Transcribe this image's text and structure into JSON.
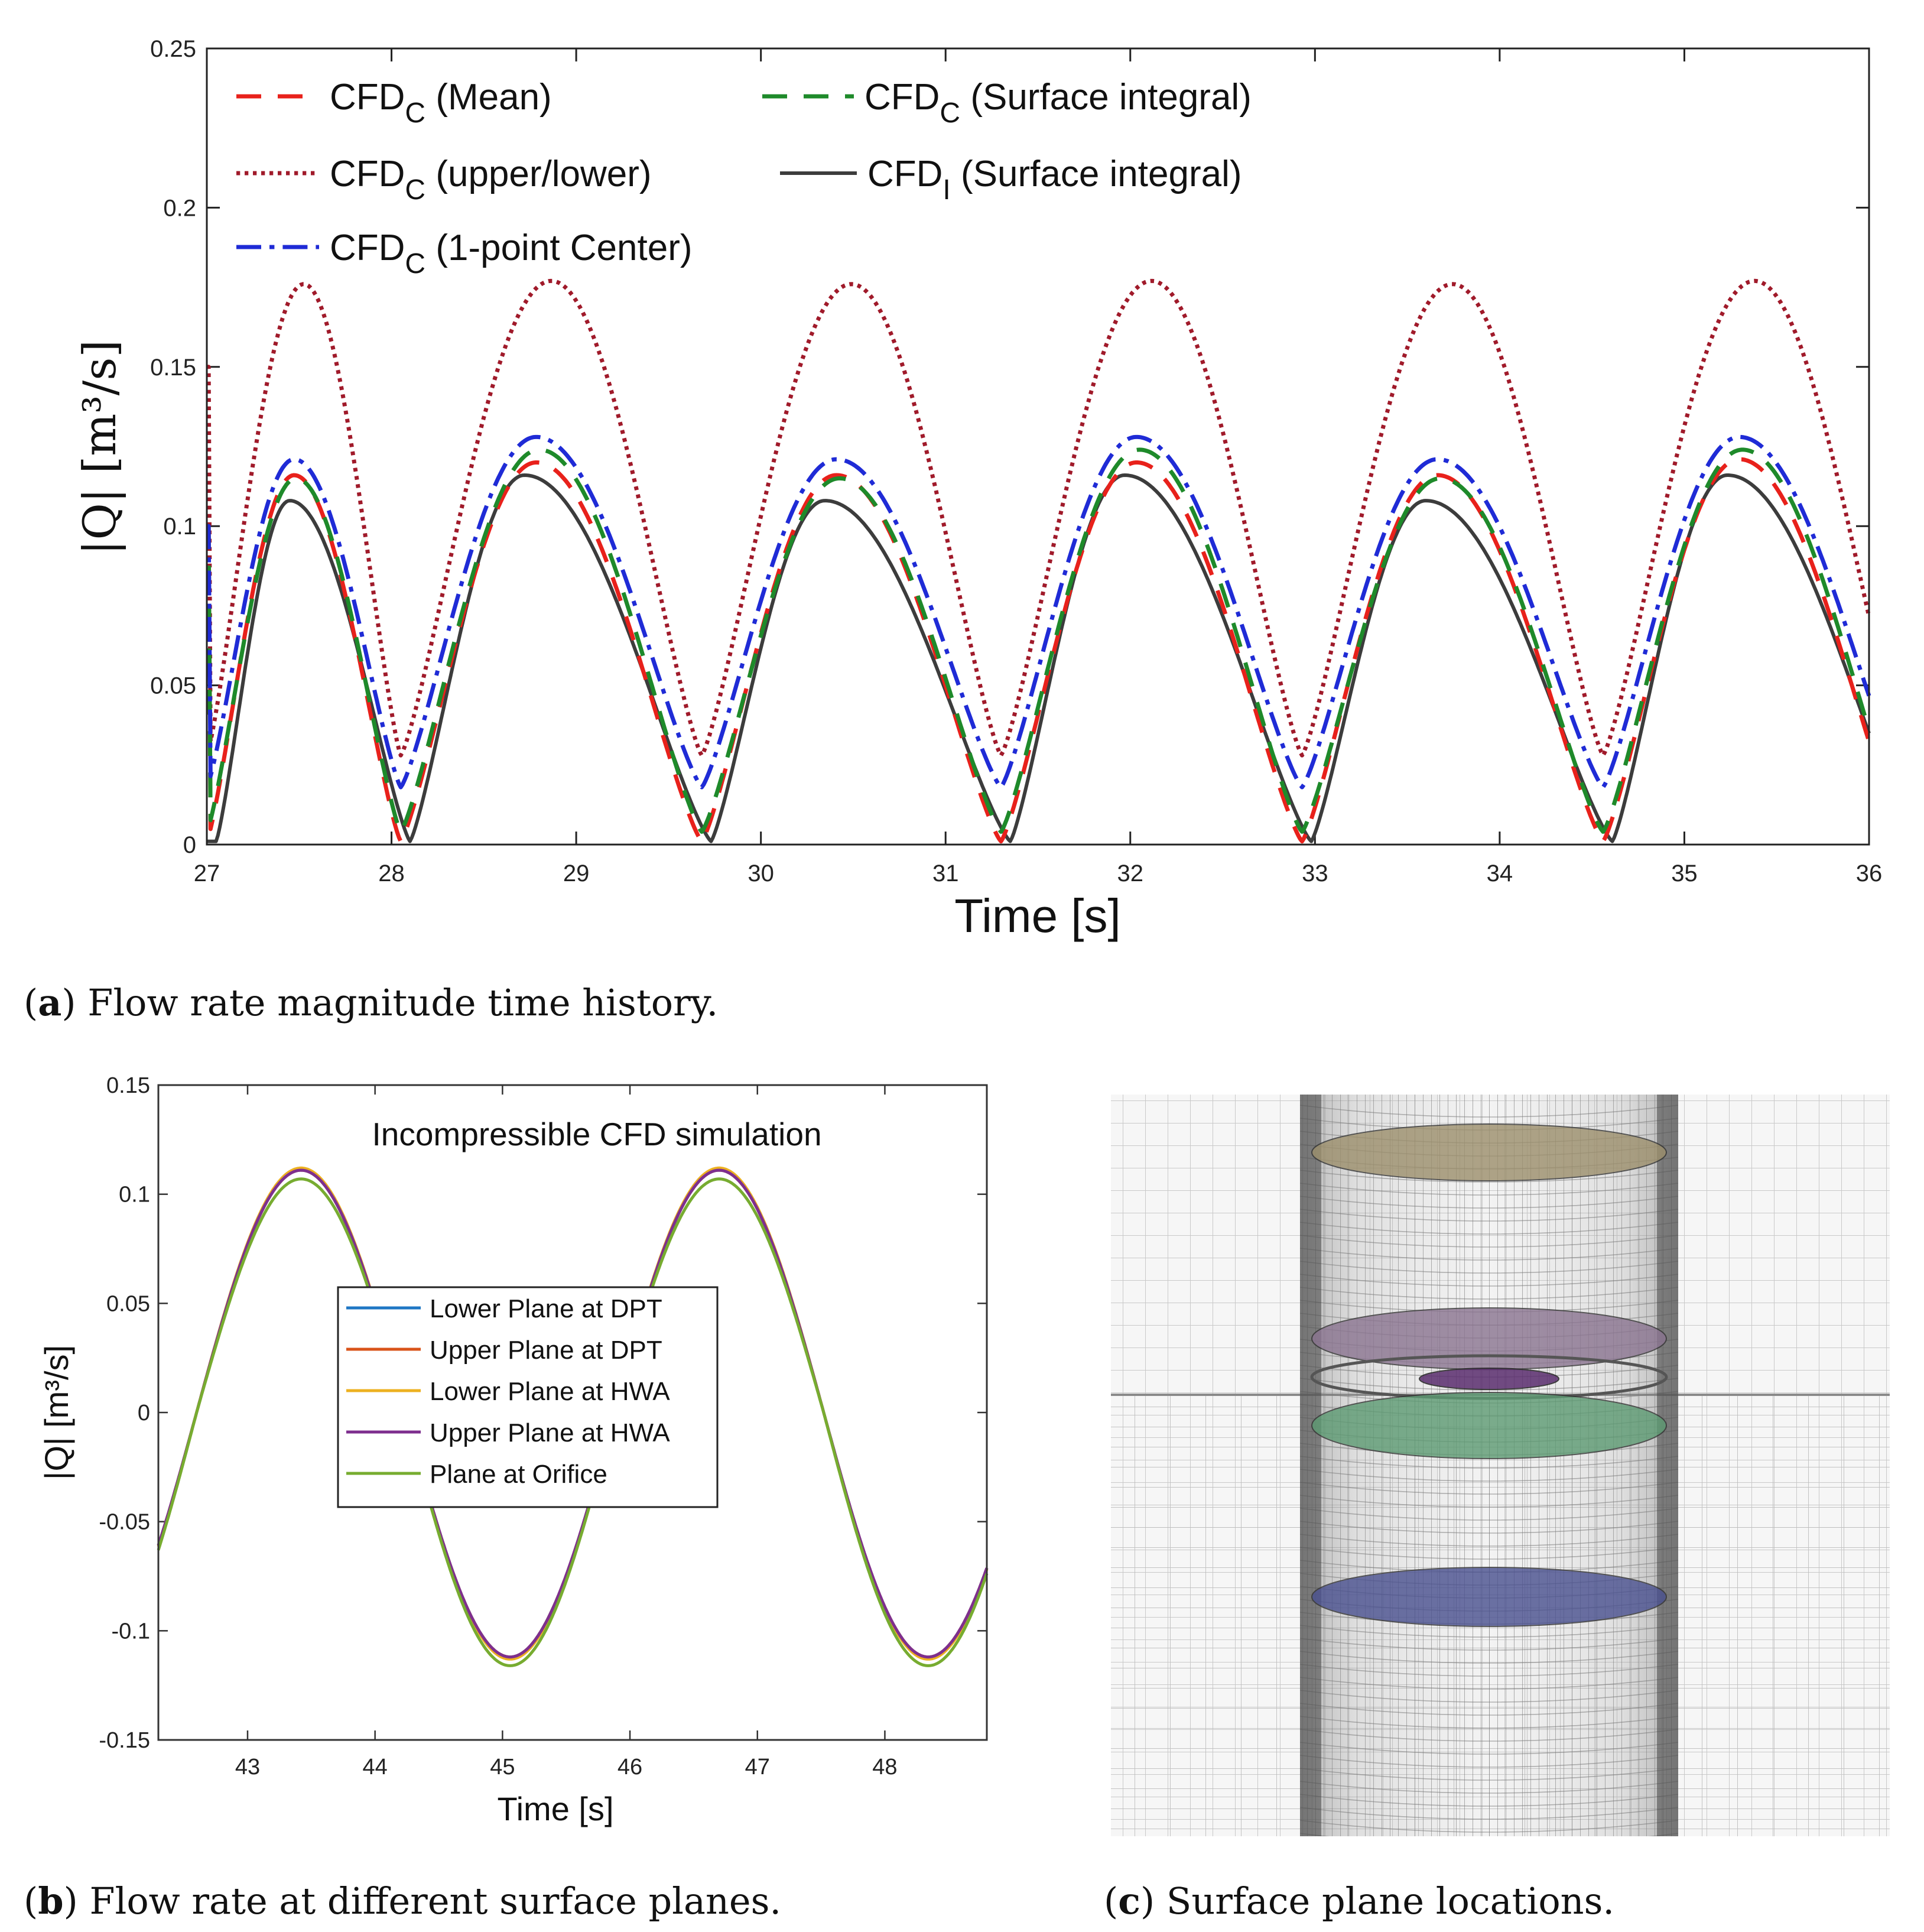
{
  "captions": {
    "a": {
      "letter": "a",
      "text": "Flow rate magnitude time history."
    },
    "b": {
      "letter": "b",
      "text": "Flow rate at different surface planes."
    },
    "c": {
      "letter": "c",
      "text": "Surface plane locations."
    }
  },
  "chart_data": [
    {
      "type": "line",
      "xlabel": "Time [s]",
      "ylabel": "|Q| [m³/s]",
      "xlim": [
        27,
        36
      ],
      "ylim": [
        0,
        0.25
      ],
      "xticks": [
        27,
        28,
        29,
        30,
        31,
        32,
        33,
        34,
        35,
        36
      ],
      "yticks": [
        "0",
        "0.05",
        "0.1",
        "0.15",
        "0.2",
        "0.25"
      ],
      "grid": false,
      "legend_placement": "top, two columns",
      "zeros": [
        27.0,
        28.05,
        29.68,
        31.3,
        32.93,
        34.56,
        36.2
      ],
      "series": [
        {
          "name": "CFD_C (Mean)",
          "name_base": "CFD",
          "name_sub": "C",
          "name_rest": " (Mean)",
          "color": "#e8211b",
          "dash": "dashed",
          "peaks": [
            0.116,
            0.12,
            0.116,
            0.12,
            0.116,
            0.121
          ],
          "peak_pos": 0.45,
          "floor": 0.001
        },
        {
          "name": "CFD_C (upper/lower)",
          "name_base": "CFD",
          "name_sub": "C",
          "name_rest": " (upper/lower)",
          "color": "#a01a2a",
          "dash": "dotted",
          "peaks": [
            0.176,
            0.177,
            0.176,
            0.177,
            0.176,
            0.177
          ],
          "peak_pos": 0.5,
          "floor": 0.028
        },
        {
          "name": "CFD_C (1-point Center)",
          "name_base": "CFD",
          "name_sub": "C",
          "name_rest": " (1-point Center)",
          "color": "#1f2bd6",
          "dash": "dashdot",
          "peaks": [
            0.121,
            0.128,
            0.121,
            0.128,
            0.121,
            0.128
          ],
          "peak_pos": 0.45,
          "floor": 0.018
        },
        {
          "name": "CFD_C (Surface integral)",
          "name_base": "CFD",
          "name_sub": "C",
          "name_rest": " (Surface integral)",
          "color": "#1e8a2a",
          "dash": "dashed",
          "peaks": [
            0.115,
            0.124,
            0.115,
            0.124,
            0.115,
            0.124
          ],
          "peak_pos": 0.46,
          "floor": 0.004
        },
        {
          "name": "CFD_I (Surface integral)",
          "name_base": "CFD",
          "name_sub": "I",
          "name_rest": " (Surface integral)",
          "color": "#3c3c3c",
          "dash": "solid",
          "peaks": [
            0.108,
            0.116,
            0.108,
            0.116,
            0.108,
            0.116
          ],
          "peak_pos": 0.38,
          "floor": 0.001,
          "shift": 0.05
        }
      ]
    },
    {
      "type": "line",
      "title": "Incompressible CFD simulation",
      "xlabel": "Time [s]",
      "ylabel": "|Q| [m³/s]",
      "xlim": [
        42.3,
        48.8
      ],
      "ylim": [
        -0.15,
        0.15
      ],
      "xticks": [
        43,
        44,
        45,
        46,
        47,
        48
      ],
      "yticks": [
        "-0.15",
        "-0.1",
        "-0.05",
        "0",
        "0.05",
        "0.1",
        "0.15"
      ],
      "grid": false,
      "legend_placement": "center",
      "period": 3.28,
      "phase_zero": 42.6,
      "series": [
        {
          "name": "Lower Plane at DPT",
          "color": "#1f77c4",
          "amp_pos": 0.111,
          "amp_neg": 0.112
        },
        {
          "name": "Upper Plane at DPT",
          "color": "#d95319",
          "amp_pos": 0.111,
          "amp_neg": 0.112
        },
        {
          "name": "Lower Plane at HWA",
          "color": "#edb120",
          "amp_pos": 0.112,
          "amp_neg": 0.113
        },
        {
          "name": "Upper Plane at HWA",
          "color": "#7e2f8e",
          "amp_pos": 0.111,
          "amp_neg": 0.112
        },
        {
          "name": "Plane at Orifice",
          "color": "#77ac30",
          "amp_pos": 0.107,
          "amp_neg": 0.116
        }
      ]
    }
  ],
  "panel_c": {
    "planes": [
      {
        "color": "#9c8f6c"
      },
      {
        "color": "#8a7490"
      },
      {
        "color": "#5a2d6e"
      },
      {
        "color": "#5c9a72"
      },
      {
        "color": "#49508f"
      }
    ]
  }
}
